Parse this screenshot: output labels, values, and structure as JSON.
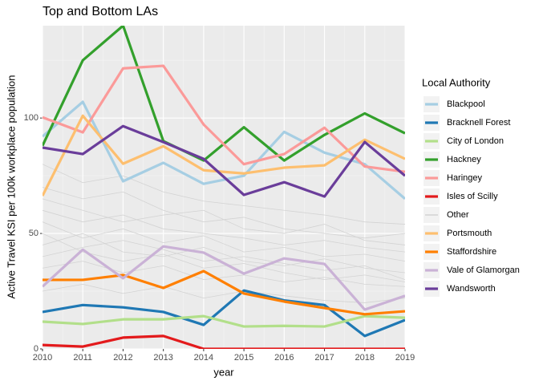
{
  "chart_data": {
    "type": "line",
    "title": "Top and Bottom LAs",
    "xlabel": "year",
    "ylabel": "Active Travel KSI per 100k workplace population",
    "legend_title": "Local Authority",
    "legend": "right",
    "grid": true,
    "x": [
      2010,
      2011,
      2012,
      2013,
      2014,
      2015,
      2016,
      2017,
      2018,
      2019
    ],
    "xlim": [
      2010,
      2019
    ],
    "xticks": [
      2010,
      2011,
      2012,
      2013,
      2014,
      2015,
      2016,
      2017,
      2018,
      2019
    ],
    "ylim": [
      0,
      140
    ],
    "yticks": [
      0,
      50,
      100
    ],
    "series": [
      {
        "name": "Blackpool",
        "color": "#a6cee3",
        "values": [
          92,
          107,
          72.6,
          80.6,
          71.5,
          75,
          94,
          85,
          80,
          65
        ]
      },
      {
        "name": "Bracknell Forest",
        "color": "#1f78b4",
        "values": [
          16,
          19,
          18,
          16,
          10.4,
          25.3,
          21,
          19,
          5.6,
          12.5
        ]
      },
      {
        "name": "City of London",
        "color": "#b2df8a",
        "values": [
          11.8,
          10.8,
          12.8,
          12.8,
          14.2,
          9.7,
          10,
          9.7,
          14.2,
          13.5
        ]
      },
      {
        "name": "Hackney",
        "color": "#33a02c",
        "values": [
          88,
          125,
          140,
          90,
          81.6,
          96,
          81.6,
          92.7,
          102,
          93.4
        ]
      },
      {
        "name": "Haringey",
        "color": "#fb9a99",
        "values": [
          100.3,
          93.8,
          121.5,
          122.6,
          97.2,
          80,
          84.4,
          95.8,
          79,
          76.7
        ]
      },
      {
        "name": "Isles of Scilly",
        "color": "#e31a1c",
        "values": [
          1.7,
          1,
          4.9,
          5.6,
          0,
          0,
          0,
          0,
          0,
          0
        ]
      },
      {
        "name": "Other",
        "color": "#d3d3d3",
        "lines": [
          [
            60,
            55,
            58,
            52,
            50,
            48,
            45,
            47,
            44,
            42
          ],
          [
            45,
            50,
            42,
            40,
            44,
            38,
            36,
            39,
            35,
            33
          ],
          [
            70,
            65,
            68,
            60,
            55,
            57,
            52,
            50,
            48,
            50
          ],
          [
            35,
            38,
            33,
            36,
            30,
            32,
            29,
            31,
            28,
            27
          ],
          [
            55,
            48,
            52,
            46,
            49,
            42,
            44,
            40,
            41,
            38
          ],
          [
            25,
            28,
            24,
            27,
            22,
            25,
            23,
            21,
            20,
            22
          ],
          [
            80,
            72,
            75,
            68,
            64,
            62,
            60,
            58,
            55,
            54
          ],
          [
            40,
            44,
            47,
            43,
            38,
            40,
            37,
            34,
            36,
            30
          ],
          [
            65,
            60,
            55,
            58,
            60,
            52,
            50,
            54,
            47,
            45
          ],
          [
            50,
            42,
            38,
            41,
            35,
            37,
            33,
            30,
            32,
            29
          ]
        ]
      },
      {
        "name": "Portsmouth",
        "color": "#fdbf6f",
        "values": [
          66.3,
          101,
          80.2,
          87.8,
          77.4,
          76,
          78.5,
          79.5,
          90.6,
          82.3
        ]
      },
      {
        "name": "Staffordshire",
        "color": "#ff7f00",
        "values": [
          29.9,
          29.9,
          32,
          26.4,
          33.7,
          24,
          20.5,
          17.7,
          15,
          16.3
        ]
      },
      {
        "name": "Vale of Glamorgan",
        "color": "#cab2d6",
        "values": [
          27,
          43,
          30.6,
          44.4,
          41.7,
          32.6,
          39.2,
          36.8,
          17,
          23
        ]
      },
      {
        "name": "Wandsworth",
        "color": "#6a3d9a",
        "values": [
          87.2,
          84.4,
          96.5,
          89.6,
          82.3,
          66.7,
          72.2,
          66,
          89.6,
          75
        ]
      }
    ]
  }
}
